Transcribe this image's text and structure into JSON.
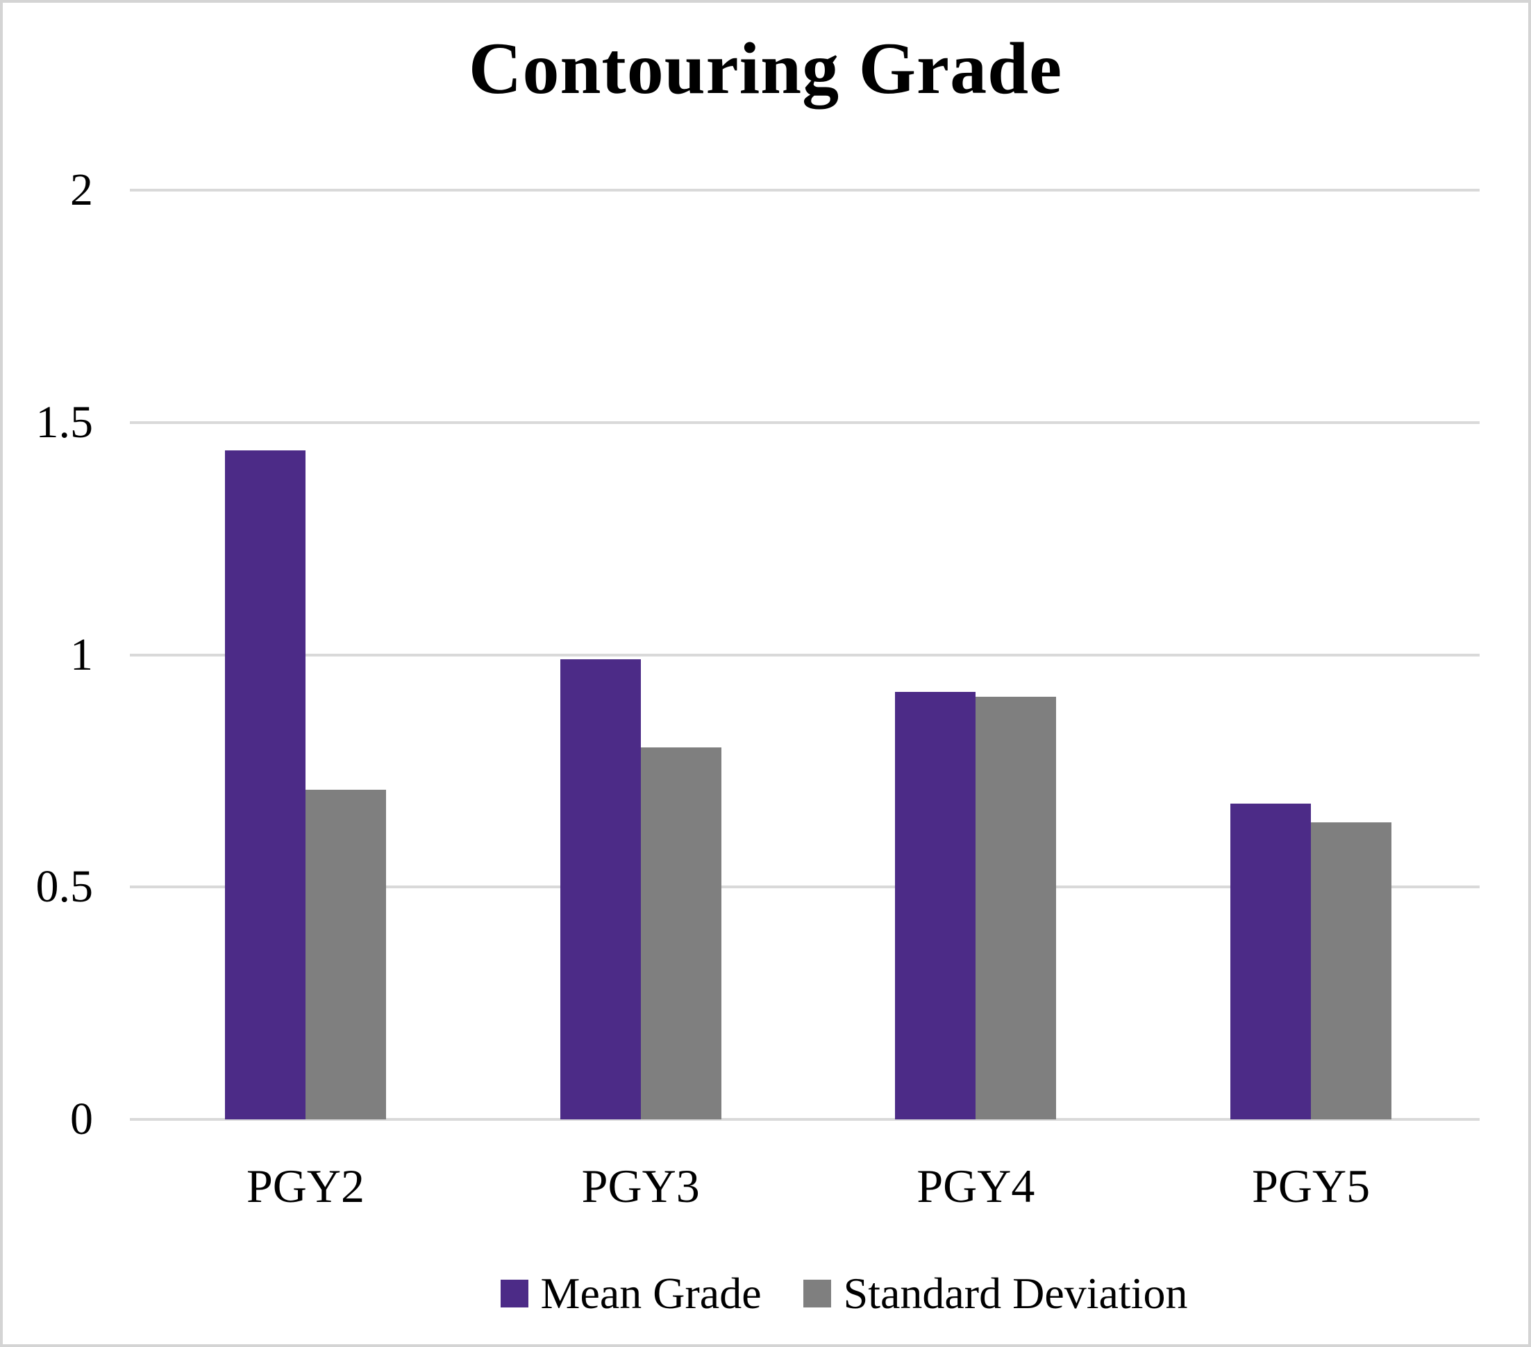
{
  "chart_data": {
    "type": "bar",
    "title": "Contouring Grade",
    "categories": [
      "PGY2",
      "PGY3",
      "PGY4",
      "PGY5"
    ],
    "series": [
      {
        "name": "Mean Grade",
        "color": "#4C2B87",
        "values": [
          1.44,
          0.99,
          0.92,
          0.68
        ]
      },
      {
        "name": "Standard Deviation",
        "color": "#7F7F7F",
        "values": [
          0.71,
          0.8,
          0.91,
          0.64
        ]
      }
    ],
    "ylim": [
      0,
      2
    ],
    "yticks": [
      0,
      0.5,
      1,
      1.5,
      2
    ],
    "ytick_labels": [
      "0",
      "0.5",
      "1",
      "1.5",
      "2"
    ],
    "xlabel": "",
    "ylabel": "",
    "grid": "horizontal-only",
    "gridline_color": "#D9D9D9",
    "legend_position": "bottom-center",
    "background_color": "#FFFFFF",
    "text_color": "#000000"
  }
}
